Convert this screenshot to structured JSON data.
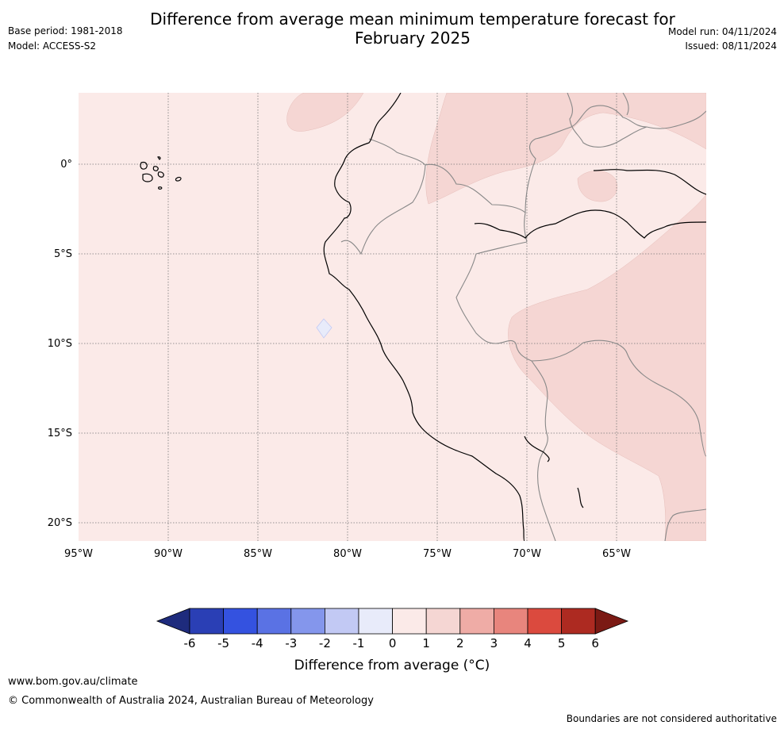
{
  "title_line1": "Difference from average mean minimum temperature forecast for",
  "title_line2": "February 2025",
  "base_period": "Base period: 1981-2018",
  "model": "Model: ACCESS-S2",
  "model_run": "Model run: 04/11/2024",
  "issued": "Issued: 08/11/2024",
  "map": {
    "lon_ticks": [
      "95°W",
      "90°W",
      "85°W",
      "80°W",
      "75°W",
      "70°W",
      "65°W"
    ],
    "lat_ticks": [
      "0°",
      "5°S",
      "10°S",
      "15°S",
      "20°S"
    ],
    "lon_range": [
      -95,
      -60
    ],
    "lat_range": [
      -21,
      4
    ],
    "background_anomaly_class": "0 to 1",
    "colors": {
      "c0_1": "#fbeae8",
      "c1_2": "#f5d6d3",
      "cm1_0": "#e8ebfa"
    }
  },
  "colorbar": {
    "label": "Difference from average (°C)",
    "ticks": [
      "-6",
      "-5",
      "-4",
      "-3",
      "-2",
      "-1",
      "0",
      "1",
      "2",
      "3",
      "4",
      "5",
      "6"
    ],
    "colors": [
      "#1e2b7d",
      "#2a3fb5",
      "#3452e0",
      "#5a72e4",
      "#8496ec",
      "#c2c9f4",
      "#e8ebfa",
      "#fbeae8",
      "#f5d6d3",
      "#efaca6",
      "#e8857d",
      "#db4a3e",
      "#ad2a21",
      "#7b1a14"
    ]
  },
  "footer_url": "www.bom.gov.au/climate",
  "footer_copyright": "© Commonwealth of Australia 2024, Australian Bureau of Meteorology",
  "footer_disclaimer": "Boundaries are not considered authoritative"
}
